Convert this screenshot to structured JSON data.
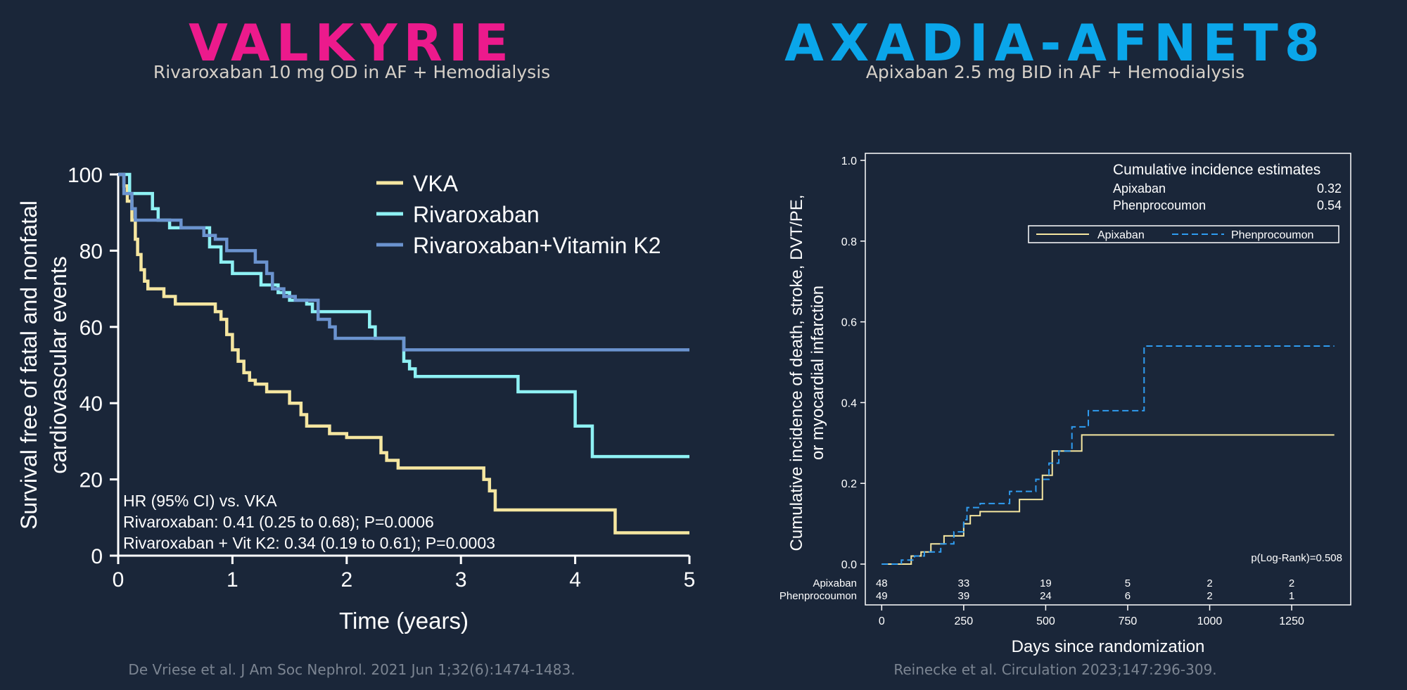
{
  "left": {
    "title": "VALKYRIE",
    "subtitle": "Rivaroxaban 10 mg OD in AF + Hemodialysis",
    "citation": "De Vriese et al. J Am Soc Nephrol. 2021 Jun 1;32(6):1474-1483.",
    "title_color": "#ec1a8c"
  },
  "right": {
    "title": "AXADIA-AFNET8",
    "subtitle": "Apixaban 2.5 mg BID in AF + Hemodialysis",
    "citation": "Reinecke et al. Circulation 2023;147:296-309.",
    "title_color": "#0aa6ea"
  },
  "chart_data": [
    {
      "type": "line",
      "step": true,
      "xlabel": "Time (years)",
      "ylabel_lines": [
        "Survival free of fatal and nonfatal",
        "cardiovascular events"
      ],
      "xlim": [
        0,
        5
      ],
      "ylim": [
        0,
        100
      ],
      "xticks": [
        0,
        1,
        2,
        3,
        4,
        5
      ],
      "yticks": [
        0,
        20,
        40,
        60,
        80,
        100
      ],
      "legend_position": "top-right",
      "series": [
        {
          "name": "VKA",
          "color": "#f5e6a0",
          "x": [
            0,
            0.05,
            0.08,
            0.12,
            0.15,
            0.17,
            0.2,
            0.23,
            0.26,
            0.3,
            0.4,
            0.5,
            0.85,
            0.9,
            0.95,
            1.0,
            1.05,
            1.1,
            1.15,
            1.2,
            1.3,
            1.5,
            1.6,
            1.65,
            1.85,
            2.0,
            2.3,
            2.35,
            2.45,
            3.2,
            3.25,
            3.3,
            4.35,
            5.0
          ],
          "y": [
            100,
            97,
            93,
            88,
            83,
            79,
            75,
            72,
            70,
            70,
            68,
            66,
            64,
            62,
            58,
            54,
            51,
            48,
            46,
            45,
            43,
            40,
            37,
            34,
            32,
            31,
            27,
            25,
            23,
            20,
            17,
            12,
            6,
            6
          ]
        },
        {
          "name": "Rivaroxaban",
          "color": "#8ef1f4",
          "x": [
            0,
            0.1,
            0.3,
            0.35,
            0.45,
            0.8,
            0.9,
            1.0,
            1.1,
            1.25,
            1.4,
            1.5,
            1.65,
            1.7,
            1.9,
            2.2,
            2.25,
            2.3,
            2.5,
            2.55,
            2.6,
            3.5,
            4.0,
            4.15,
            5.0
          ],
          "y": [
            100,
            95,
            91,
            88,
            86,
            81,
            77,
            74,
            74,
            71,
            69,
            67,
            66,
            64,
            64,
            60,
            57,
            57,
            51,
            49,
            47,
            43,
            34,
            26,
            26
          ]
        },
        {
          "name": "Rivaroxaban+Vitamin K2",
          "color": "#6b93cf",
          "x": [
            0,
            0.05,
            0.12,
            0.15,
            0.2,
            0.55,
            0.75,
            0.85,
            0.95,
            1.1,
            1.2,
            1.3,
            1.35,
            1.45,
            1.55,
            1.75,
            1.85,
            1.9,
            2.25,
            2.45,
            2.5,
            5.0
          ],
          "y": [
            100,
            95,
            91,
            88,
            88,
            86,
            84,
            83,
            80,
            80,
            77,
            74,
            70,
            68,
            67,
            62,
            60,
            57,
            57,
            57,
            54,
            54
          ]
        }
      ],
      "annotation": [
        "HR (95% CI) vs. VKA",
        "Rivaroxaban: 0.41 (0.25 to 0.68); P=0.0006",
        "Rivaroxaban + Vit K2: 0.34 (0.19 to 0.61); P=0.0003"
      ]
    },
    {
      "type": "line",
      "step": true,
      "xlabel": "Days since randomization",
      "ylabel_lines": [
        "Cumulative incidence of death, stroke, DVT/PE,",
        "or myocardial infarction"
      ],
      "xlim": [
        -50,
        1430
      ],
      "ylim": [
        0,
        1
      ],
      "xticks": [
        0,
        250,
        500,
        750,
        1000,
        1250
      ],
      "yticks": [
        "0.0",
        "0.2",
        "0.4",
        "0.6",
        "0.8",
        "1.0"
      ],
      "legend_position": "top-right",
      "series": [
        {
          "name": "Apixaban",
          "color": "#f5e6a0",
          "dash": false,
          "x": [
            0,
            80,
            90,
            120,
            150,
            190,
            250,
            270,
            300,
            400,
            420,
            460,
            490,
            520,
            580,
            610,
            680,
            750,
            1380
          ],
          "y": [
            0,
            0,
            0.02,
            0.03,
            0.05,
            0.07,
            0.1,
            0.12,
            0.13,
            0.13,
            0.16,
            0.16,
            0.22,
            0.28,
            0.28,
            0.32,
            0.32,
            0.32,
            0.32
          ]
        },
        {
          "name": "Phenprocoumon",
          "color": "#2f9cf0",
          "dash": true,
          "x": [
            0,
            60,
            100,
            130,
            180,
            220,
            250,
            260,
            300,
            350,
            390,
            430,
            470,
            510,
            540,
            580,
            630,
            680,
            750,
            800,
            1380
          ],
          "y": [
            0,
            0.01,
            0.02,
            0.03,
            0.05,
            0.08,
            0.11,
            0.14,
            0.15,
            0.15,
            0.18,
            0.18,
            0.21,
            0.25,
            0.28,
            0.34,
            0.38,
            0.38,
            0.38,
            0.54,
            0.54
          ]
        }
      ],
      "estimates_title": "Cumulative incidence estimates",
      "estimates": [
        {
          "label": "Apixaban",
          "value": "0.32"
        },
        {
          "label": "Phenprocoumon",
          "value": "0.54"
        }
      ],
      "pvalue": "p(Log-Rank)=0.508",
      "at_risk": [
        {
          "label": "Apixaban",
          "values": [
            "48",
            "33",
            "19",
            "5",
            "2",
            "2"
          ]
        },
        {
          "label": "Phenprocoumon",
          "values": [
            "49",
            "39",
            "24",
            "6",
            "2",
            "1"
          ]
        }
      ]
    }
  ]
}
